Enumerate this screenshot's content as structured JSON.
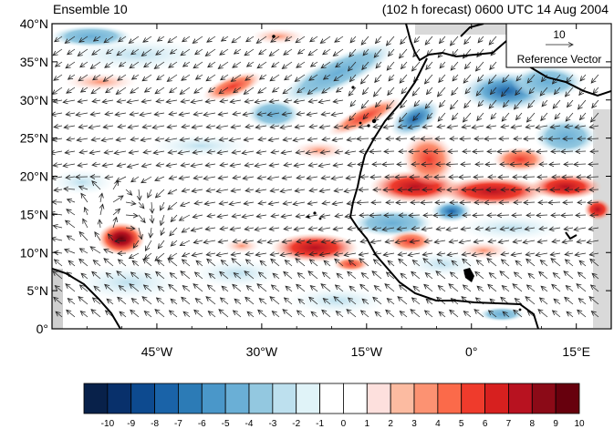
{
  "header": {
    "ensemble_label": "Ensemble 10",
    "forecast_label": "(102 h forecast) 0600 UTC 14 Aug 2004"
  },
  "map": {
    "lat_ticks": [
      "40°N",
      "35°N",
      "30°N",
      "25°N",
      "20°N",
      "15°N",
      "10°N",
      "5°N",
      "0°"
    ],
    "lon_ticks": [
      "45°W",
      "30°W",
      "15°W",
      "0°",
      "15°E"
    ],
    "lat_range": [
      0,
      40
    ],
    "lon_range": [
      -60,
      20
    ],
    "reference_vector": {
      "value": "10",
      "label": "Reference Vector"
    },
    "anomaly_features": [
      {
        "kind": "positive",
        "name": "vortex-west",
        "lon": -49.5,
        "lat": 12.5,
        "level": 9
      },
      {
        "kind": "positive",
        "name": "band-sahara",
        "lon": 0,
        "lat": 19.5,
        "level": 7
      },
      {
        "kind": "positive",
        "name": "blob-atlantic",
        "lon": -21,
        "lat": 11.5,
        "level": 6
      },
      {
        "kind": "positive",
        "name": "streak-north",
        "lon": -35,
        "lat": 33,
        "level": 5
      },
      {
        "kind": "positive",
        "name": "streak-morocco",
        "lon": -16,
        "lat": 29,
        "level": 5
      },
      {
        "kind": "negative",
        "name": "blob-mediterranean",
        "lon": 3,
        "lat": 30,
        "level": -5
      },
      {
        "kind": "negative",
        "name": "blob-atlantic-north",
        "lon": -27,
        "lat": 29,
        "level": -4
      },
      {
        "kind": "negative",
        "name": "blob-west-africa",
        "lon": -9,
        "lat": 14,
        "level": -5
      }
    ]
  },
  "colorbar": {
    "labels": [
      "-10",
      "-9",
      "-8",
      "-7",
      "-6",
      "-5",
      "-4",
      "-3",
      "-2",
      "-1",
      "0",
      "1",
      "2",
      "3",
      "4",
      "5",
      "6",
      "7",
      "8",
      "9",
      "10"
    ],
    "colors": [
      "#08214a",
      "#08306b",
      "#0d4a8f",
      "#1a63a8",
      "#2c7bb6",
      "#4a97c9",
      "#6aafd6",
      "#93c8e0",
      "#bde0ee",
      "#e0f3f8",
      "#ffffff",
      "#ffffff",
      "#fde0dd",
      "#fcbba1",
      "#fc9272",
      "#fb6a4a",
      "#ef3b2c",
      "#d7201f",
      "#b81220",
      "#8b0a17",
      "#67000d"
    ]
  }
}
